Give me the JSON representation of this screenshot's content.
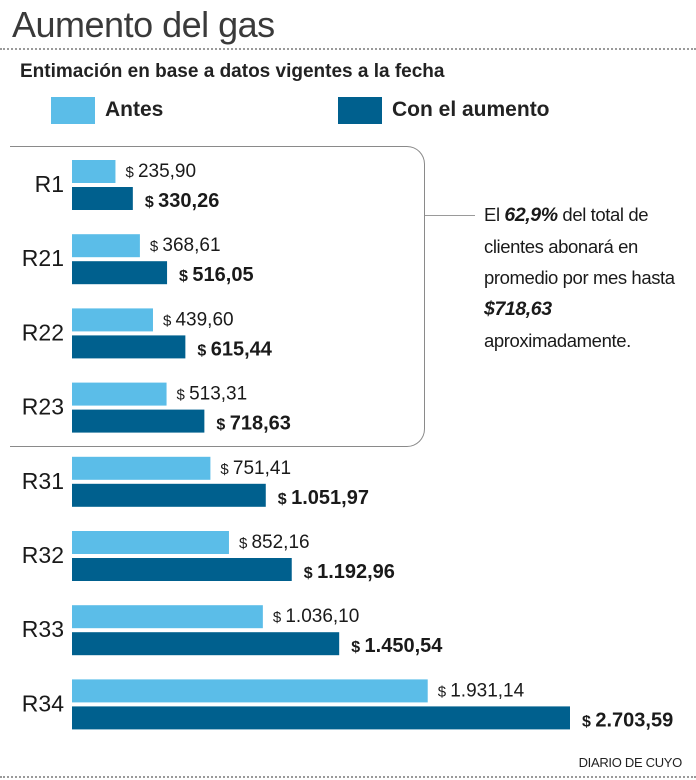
{
  "header": {
    "title": "Aumento del gas",
    "subtitle": "Entimación en base a datos vigentes a la fecha"
  },
  "note": {
    "part1": "El ",
    "highlight1": "62,9%",
    "part2": " del total de clientes abonará en promedio por mes hasta ",
    "highlight2": "$718,63",
    "part3": " aproximadamente."
  },
  "footer": {
    "source": "DIARIO DE CUYO"
  },
  "colors": {
    "antes": "#5bbde8",
    "aumento": "#00608e"
  },
  "chart_data": {
    "type": "bar",
    "orientation": "horizontal",
    "title": "Aumento del gas",
    "subtitle": "Entimación en base a datos vigentes a la fecha",
    "categories": [
      "R1",
      "R21",
      "R22",
      "R23",
      "R31",
      "R32",
      "R33",
      "R34"
    ],
    "series": [
      {
        "name": "Antes",
        "values": [
          235.9,
          368.61,
          439.6,
          513.31,
          751.41,
          852.16,
          1036.1,
          1931.14
        ],
        "labels": [
          "$ 235,90",
          "$ 368,61",
          "$ 439,60",
          "$ 513,31",
          "$ 751,41",
          "$ 852,16",
          "$ 1.036,10",
          "$ 1.931,14"
        ]
      },
      {
        "name": "Con el aumento",
        "values": [
          330.26,
          516.05,
          615.44,
          718.63,
          1051.97,
          1192.96,
          1450.54,
          2703.59
        ],
        "labels": [
          "$ 330,26",
          "$ 516,05",
          "$ 615,44",
          "$ 718,63",
          "$ 1.051,97",
          "$ 1.192,96",
          "$ 1.450,54",
          "$ 2.703,59"
        ]
      }
    ],
    "xlim": [
      0,
      2703.59
    ],
    "grid": false,
    "legend": "top"
  }
}
